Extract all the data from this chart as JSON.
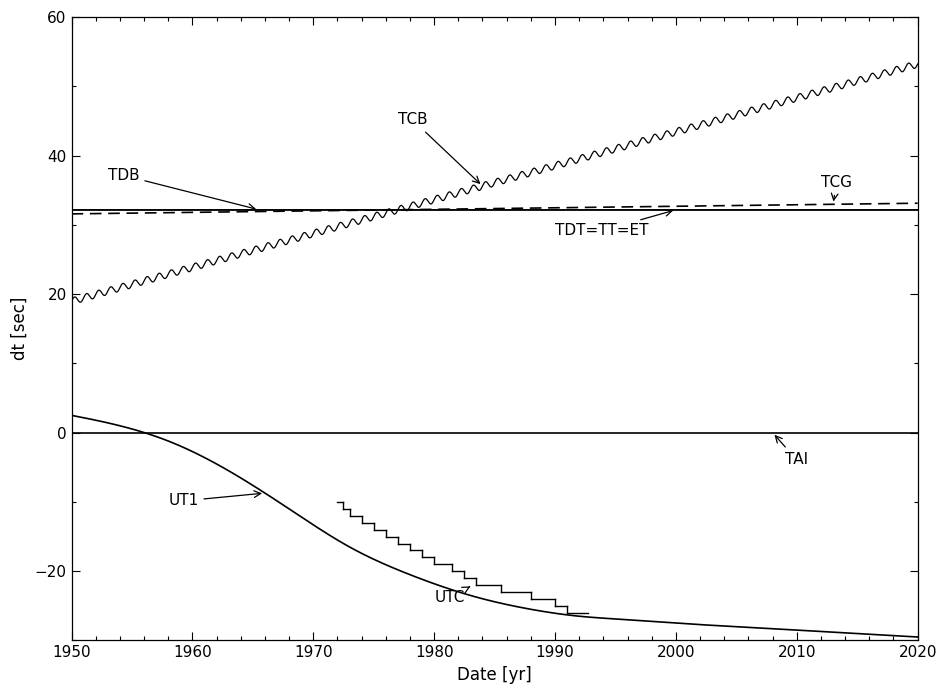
{
  "xlim": [
    1950,
    2020
  ],
  "ylim": [
    -30,
    60
  ],
  "yticks": [
    -20,
    0,
    20,
    40,
    60
  ],
  "xticks": [
    1950,
    1960,
    1970,
    1980,
    1990,
    2000,
    2010,
    2020
  ],
  "xlabel": "Date [yr]",
  "ylabel": "dt [sec]",
  "background_color": "#ffffff",
  "axis_fontsize": 12,
  "tick_fontsize": 11,
  "annotation_fontsize": 11,
  "tdt_value": 32.184,
  "L_G": 6.969290134e-10,
  "L_B": 1.55051976772e-08,
  "t0": 1977.0,
  "sec_per_year": 31557600.0,
  "tcb_osc_amp": 0.5,
  "tdb_osc_amp": 0.002,
  "ut1_knots_t": [
    1950,
    1954,
    1958,
    1963,
    1968,
    1973,
    1978,
    1983,
    1988,
    1992,
    1996,
    2000,
    2005,
    2010,
    2015,
    2020
  ],
  "ut1_knots_v": [
    2.5,
    1.0,
    -1.2,
    -5.5,
    -11.0,
    -16.5,
    -20.5,
    -23.5,
    -25.5,
    -26.5,
    -27.0,
    -27.5,
    -28.0,
    -28.5,
    -29.0,
    -29.5
  ],
  "utc_steps": [
    [
      1972.0,
      -10.0
    ],
    [
      1972.5,
      -11.0
    ],
    [
      1973.0,
      -12.0
    ],
    [
      1974.0,
      -13.0
    ],
    [
      1975.0,
      -14.0
    ],
    [
      1976.0,
      -15.0
    ],
    [
      1977.0,
      -16.0
    ],
    [
      1978.0,
      -17.0
    ],
    [
      1979.0,
      -18.0
    ],
    [
      1980.0,
      -19.0
    ],
    [
      1981.5,
      -20.0
    ],
    [
      1982.5,
      -21.0
    ],
    [
      1983.5,
      -22.0
    ],
    [
      1985.5,
      -23.0
    ],
    [
      1988.0,
      -24.0
    ],
    [
      1990.0,
      -25.0
    ],
    [
      1991.0,
      -26.0
    ],
    [
      1992.7,
      -26.0
    ]
  ]
}
